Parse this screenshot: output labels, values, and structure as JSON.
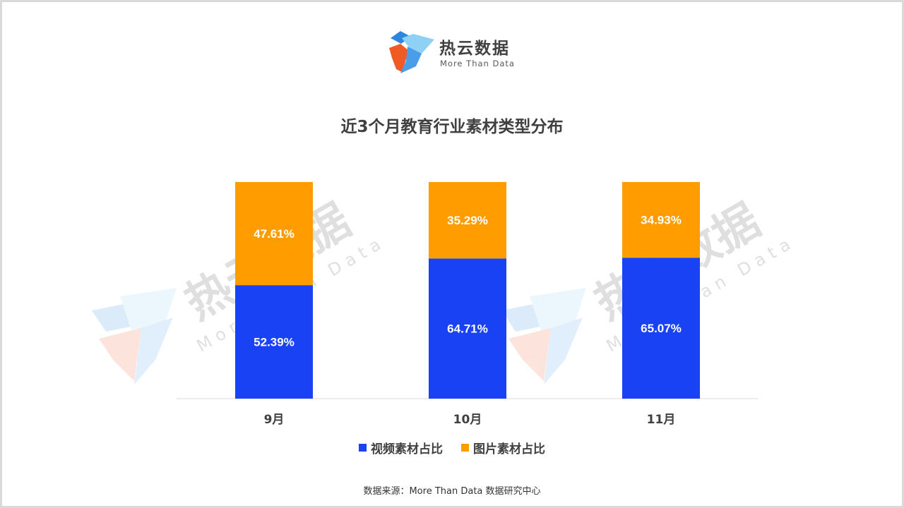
{
  "logo": {
    "name": "热云数据",
    "subtitle": "More Than Data"
  },
  "watermark": {
    "text": "热云数据",
    "subtitle": "More Than Data"
  },
  "chart_data": {
    "type": "bar",
    "stacked": true,
    "title": "近3个月教育行业素材类型分布",
    "categories": [
      "9月",
      "10月",
      "11月"
    ],
    "series": [
      {
        "name": "视频素材占比",
        "color": "#1a42f5",
        "values": [
          52.39,
          64.71,
          65.07
        ]
      },
      {
        "name": "图片素材占比",
        "color": "#ff9d00",
        "values": [
          47.61,
          35.29,
          34.93
        ]
      }
    ],
    "data_labels": [
      [
        "52.39%",
        "64.71%",
        "65.07%"
      ],
      [
        "47.61%",
        "35.29%",
        "34.93%"
      ]
    ],
    "ylim": [
      0,
      100
    ],
    "grid": false,
    "legend_position": "bottom"
  },
  "source": "数据来源：More Than Data 数据研究中心"
}
